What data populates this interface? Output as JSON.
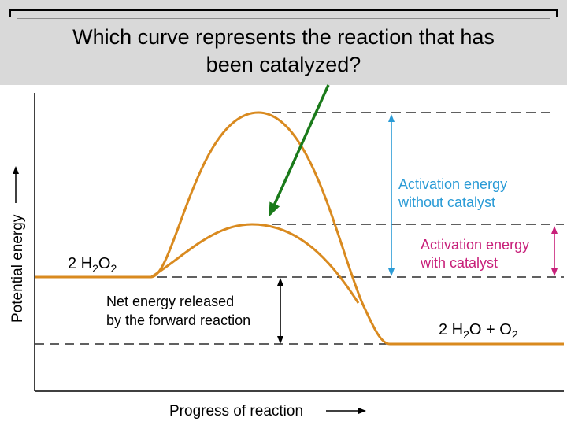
{
  "question": {
    "line1": "Which curve represents the reaction that has",
    "line2": "been catalyzed?"
  },
  "axes": {
    "ylabel": "Potential energy",
    "xlabel": "Progress of reaction"
  },
  "reactant": {
    "prefix": "2 H",
    "sub1": "2",
    "mid": "O",
    "sub2": "2"
  },
  "product": {
    "prefix": "2 H",
    "sub1": "2",
    "mid": "O + O",
    "sub2": "2"
  },
  "annotations": {
    "uncatalyzed_line1": "Activation energy",
    "uncatalyzed_line2": "without catalyst",
    "catalyzed_line1": "Activation energy",
    "catalyzed_line2": "with catalyst",
    "net_line1": "Net energy released",
    "net_line2": "by the forward reaction"
  },
  "colors": {
    "curve": "#d98a1f",
    "uncatalyzed_label": "#2a9bd6",
    "catalyzed_label": "#c8207a",
    "pointer_arrow": "#1a7a1a",
    "question_band": "#d9d9d9"
  }
}
